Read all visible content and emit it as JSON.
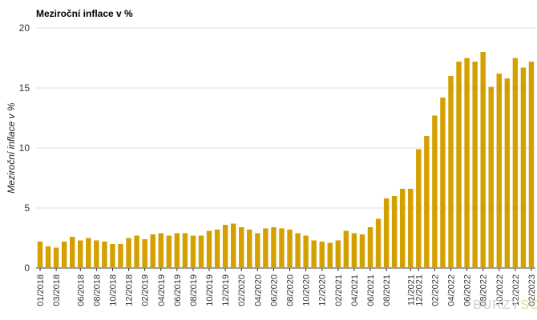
{
  "chart_data": {
    "type": "bar",
    "title": "Meziroční inflace v %",
    "xlabel": "",
    "ylabel": "Meziroční inflace v %",
    "ylim": [
      0,
      20
    ],
    "yticks": [
      0,
      5,
      10,
      15,
      20
    ],
    "grid": true,
    "legend": "none",
    "bar_color": "#d4a000",
    "categories": [
      "01/2018",
      "02/2018",
      "03/2018",
      "04/2018",
      "05/2018",
      "06/2018",
      "07/2018",
      "08/2018",
      "09/2018",
      "10/2018",
      "11/2018",
      "12/2018",
      "01/2019",
      "02/2019",
      "03/2019",
      "04/2019",
      "05/2019",
      "06/2019",
      "07/2019",
      "08/2019",
      "09/2019",
      "10/2019",
      "11/2019",
      "12/2019",
      "01/2020",
      "02/2020",
      "03/2020",
      "04/2020",
      "05/2020",
      "06/2020",
      "07/2020",
      "08/2020",
      "09/2020",
      "10/2020",
      "11/2020",
      "12/2020",
      "01/2021",
      "02/2021",
      "03/2021",
      "04/2021",
      "05/2021",
      "06/2021",
      "07/2021",
      "08/2021",
      "09/2021",
      "10/2021",
      "11/2021",
      "12/2021",
      "01/2022",
      "02/2022",
      "03/2022",
      "04/2022",
      "05/2022",
      "06/2022",
      "07/2022",
      "08/2022",
      "09/2022",
      "10/2022",
      "11/2022",
      "12/2022",
      "01/2023",
      "02/2023"
    ],
    "values": [
      2.2,
      1.8,
      1.7,
      2.2,
      2.6,
      2.3,
      2.5,
      2.3,
      2.2,
      2.0,
      2.0,
      2.5,
      2.7,
      2.4,
      2.8,
      2.9,
      2.7,
      2.9,
      2.9,
      2.7,
      2.7,
      3.1,
      3.2,
      3.6,
      3.7,
      3.4,
      3.2,
      2.9,
      3.3,
      3.4,
      3.3,
      3.2,
      2.9,
      2.7,
      2.3,
      2.2,
      2.1,
      2.3,
      3.1,
      2.9,
      2.8,
      3.4,
      4.1,
      5.8,
      6.0,
      6.6,
      6.6,
      9.9,
      11.0,
      12.7,
      14.2,
      16.0,
      17.2,
      17.5,
      17.2,
      18.0,
      15.1,
      16.2,
      15.8,
      17.5,
      16.7,
      17.2
    ],
    "xtick_labels": [
      "01/2018",
      "03/2018",
      "06/2018",
      "08/2018",
      "10/2018",
      "12/2018",
      "02/2019",
      "04/2019",
      "06/2019",
      "08/2019",
      "10/2019",
      "12/2019",
      "02/2020",
      "04/2020",
      "06/2020",
      "08/2020",
      "10/2020",
      "12/2020",
      "02/2021",
      "04/2021",
      "06/2021",
      "08/2021",
      "11/2021",
      "12/2021",
      "02/2022",
      "04/2022",
      "06/2022",
      "08/2022",
      "10/2022",
      "12/2022",
      "02/2023"
    ]
  },
  "watermark": {
    "text": "BURZY",
    "accent": "SO"
  }
}
